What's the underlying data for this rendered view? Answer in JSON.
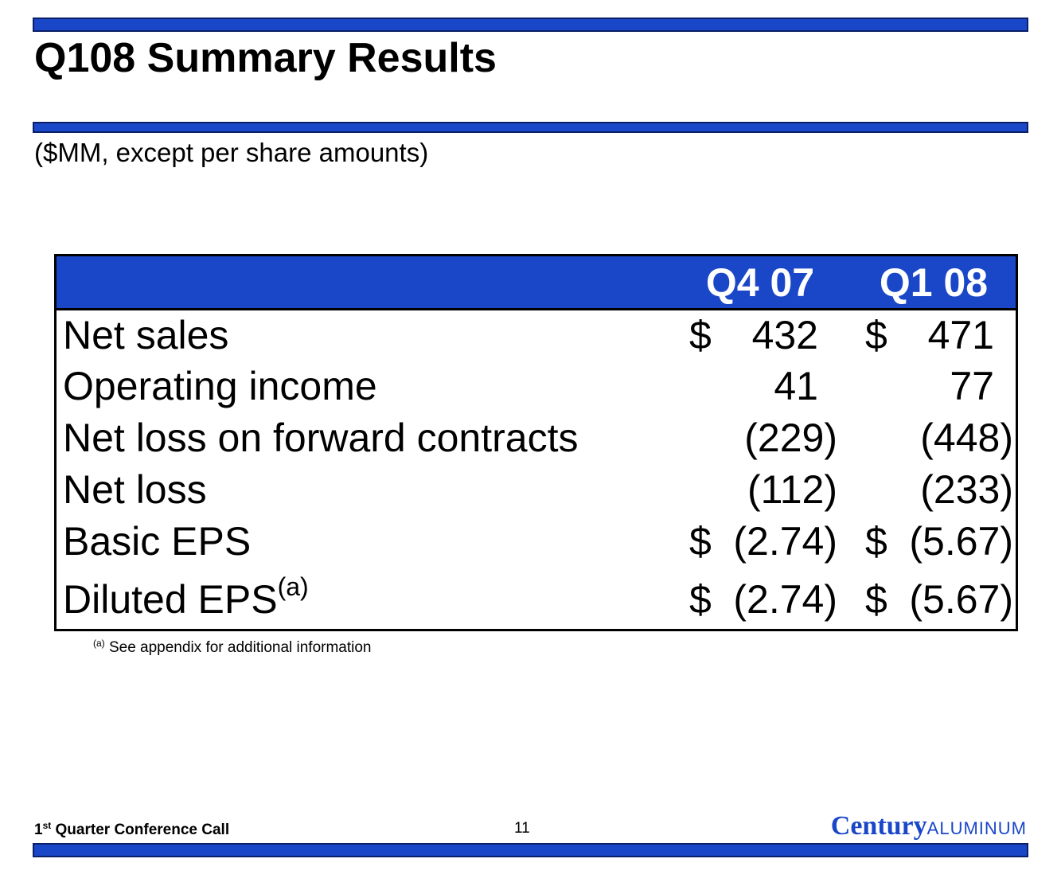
{
  "slide": {
    "title": "Q108 Summary Results",
    "subtitle": "($MM, except per share amounts)"
  },
  "table": {
    "columns": [
      "Q4 07",
      "Q1 08"
    ],
    "rows": [
      {
        "label": "Net sales",
        "label_note": "",
        "q4_sym": "$",
        "q4": "432",
        "q1_sym": "$",
        "q1": "471"
      },
      {
        "label": "Operating income",
        "label_note": "",
        "q4_sym": "",
        "q4": "41",
        "q1_sym": "",
        "q1": "77"
      },
      {
        "label": "Net loss on forward contracts",
        "label_note": "",
        "q4_sym": "",
        "q4": "(229)",
        "q1_sym": "",
        "q1": "(448)"
      },
      {
        "label": "Net loss",
        "label_note": "",
        "q4_sym": "",
        "q4": "(112)",
        "q1_sym": "",
        "q1": "(233)"
      },
      {
        "label": "Basic EPS",
        "label_note": "",
        "q4_sym": "$",
        "q4": "(2.74)",
        "q1_sym": "$",
        "q1": "(5.67)"
      },
      {
        "label": "Diluted EPS",
        "label_note": "(a)",
        "q4_sym": "$",
        "q4": "(2.74)",
        "q1_sym": "$",
        "q1": "(5.67)"
      }
    ]
  },
  "footnote": {
    "marker": "(a)",
    "text": "See appendix for additional information"
  },
  "footer": {
    "conference_prefix": "1",
    "conference_sup": "st",
    "conference_suffix": " Quarter Conference Call",
    "page_number": "11",
    "logo_primary": "Century",
    "logo_secondary": "ALUMINUM"
  },
  "colors": {
    "accent_blue": "#1a47c8",
    "header_text": "#ffffff"
  }
}
